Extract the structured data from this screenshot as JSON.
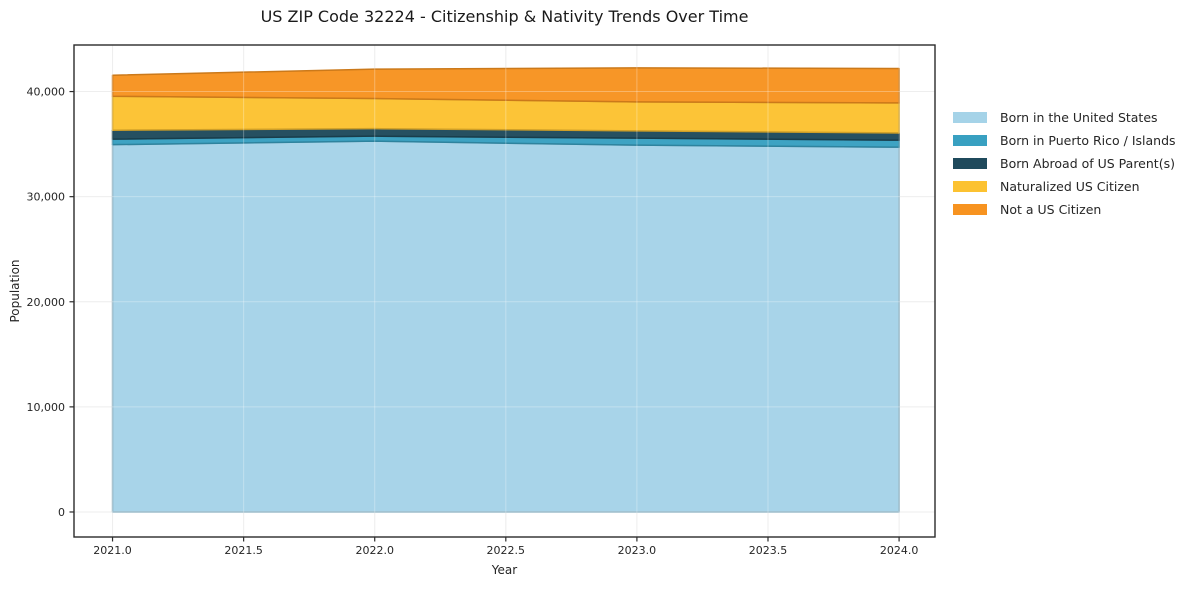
{
  "chart_data": {
    "type": "area",
    "stacked": true,
    "title": "US ZIP Code 32224 - Citizenship & Nativity Trends Over Time",
    "xlabel": "Year",
    "ylabel": "Population",
    "x": [
      2021,
      2022,
      2023,
      2024
    ],
    "series": [
      {
        "name": "Born in the United States",
        "color": "#a5d3e8",
        "values": [
          34950,
          35280,
          34900,
          34710
        ]
      },
      {
        "name": "Born in Puerto Rico / Islands",
        "color": "#38a0c1",
        "values": [
          520,
          475,
          665,
          665
        ]
      },
      {
        "name": "Born Abroad of US Parent(s)",
        "color": "#1f4a5c",
        "values": [
          855,
          715,
          695,
          685
        ]
      },
      {
        "name": "Naturalized US Citizen",
        "color": "#fcc231",
        "values": [
          3230,
          2870,
          2760,
          2860
        ]
      },
      {
        "name": "Not a US Citizen",
        "color": "#f79320",
        "values": [
          2000,
          2790,
          3235,
          3270
        ]
      }
    ],
    "xticks": {
      "values": [
        2021.0,
        2021.5,
        2022.0,
        2022.5,
        2023.0,
        2023.5,
        2024.0
      ],
      "labels": [
        "2021.0",
        "2021.5",
        "2022.0",
        "2022.5",
        "2023.0",
        "2023.5",
        "2024.0"
      ]
    },
    "yticks": {
      "values": [
        0,
        10000,
        20000,
        30000,
        40000
      ],
      "labels": [
        "0",
        "10,000",
        "20,000",
        "30,000",
        "40,000"
      ]
    },
    "xlim": [
      2020.853,
      2024.137
    ],
    "ylim": [
      -2380,
      44430
    ],
    "grid": true,
    "legend_position": "right"
  },
  "style_colors": {
    "grid": "#e7e7e7",
    "spine": "#2b2b2b",
    "tick_text": "#262626"
  }
}
